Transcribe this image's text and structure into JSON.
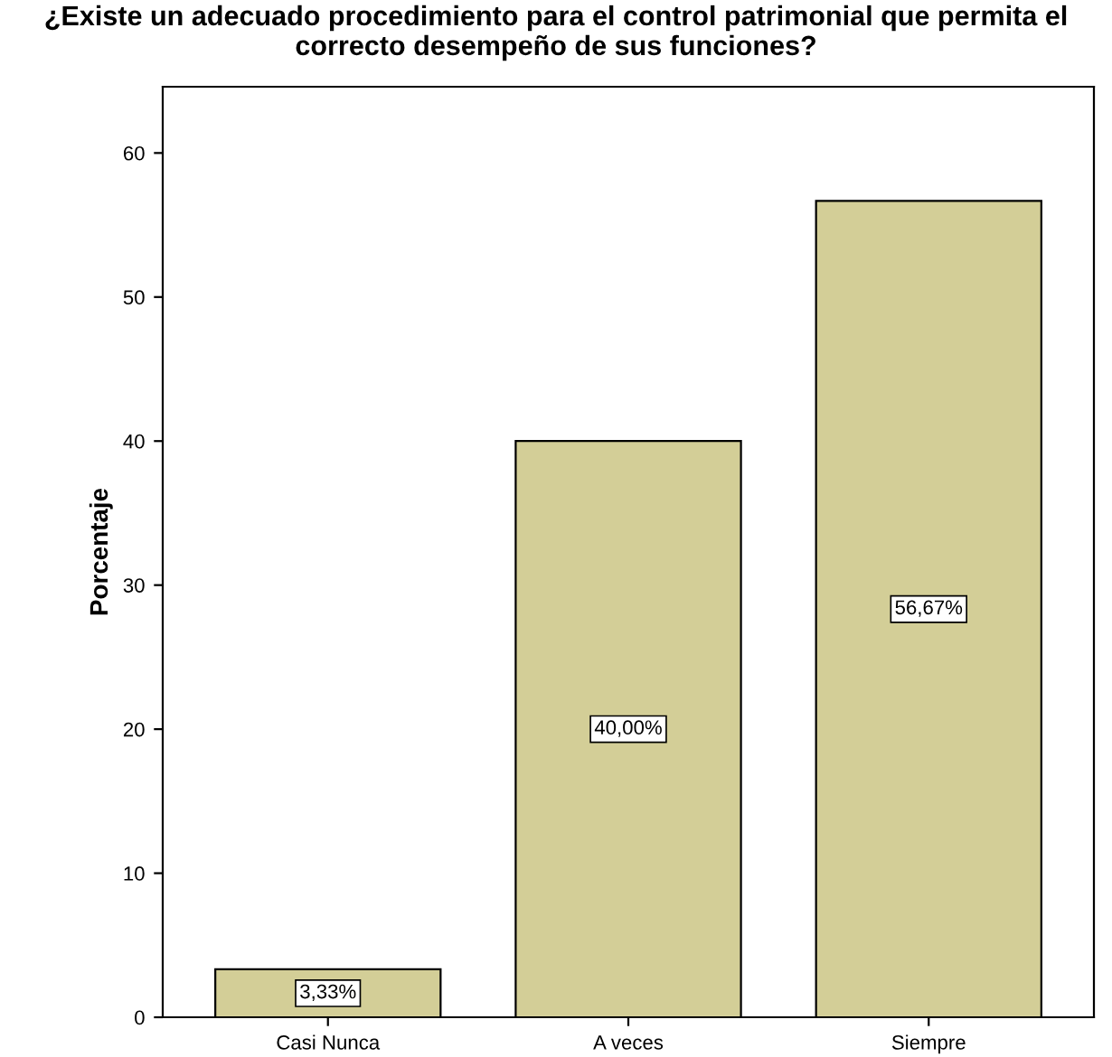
{
  "chart_data": {
    "type": "bar",
    "title": "¿Existe un adecuado procedimiento para el control patrimonial que permita el\ncorrecto desempeño de sus funciones?",
    "ylabel": "Porcentaje",
    "categories": [
      "Casi Nunca",
      "A veces",
      "Siempre"
    ],
    "values": [
      3.33,
      40.0,
      56.67
    ],
    "value_labels": [
      "3,33%",
      "40,00%",
      "56,67%"
    ],
    "color": "#d3ce97",
    "ylim": [
      0,
      64.6
    ],
    "yticks": [
      0,
      10,
      20,
      30,
      40,
      50,
      60
    ],
    "grid": false,
    "legend": false
  }
}
